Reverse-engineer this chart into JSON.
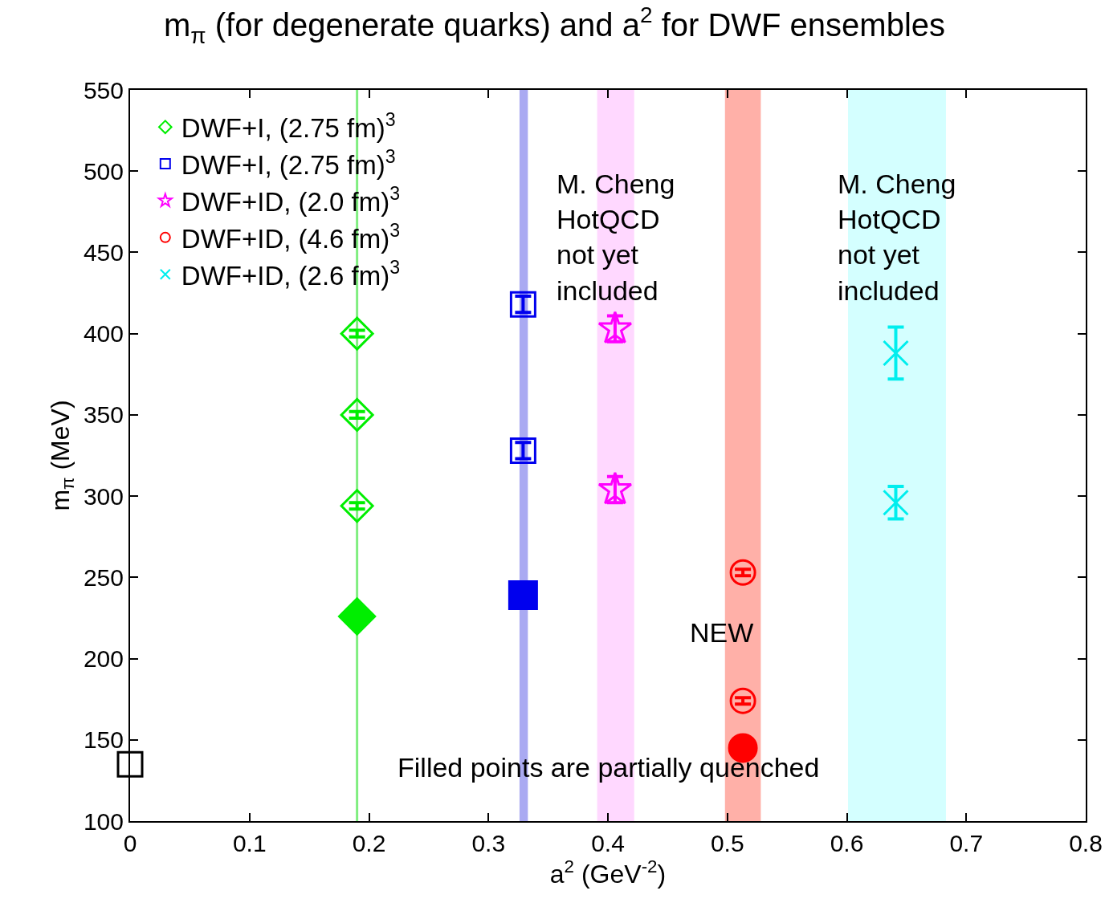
{
  "chart_data": {
    "type": "scatter",
    "title": "m$_{π}$ (for degenerate quarks) and a$^{2}$ for DWF ensembles",
    "xlabel": "a$^{2}$ (GeV$^{-2}$)",
    "ylabel": "m$_{π}$ (MeV)",
    "xlim": [
      0,
      0.8
    ],
    "xticks": [
      0,
      0.1,
      0.2,
      0.3,
      0.4,
      0.5,
      0.6,
      0.7,
      0.8
    ],
    "ylim": [
      100,
      550
    ],
    "yticks": [
      100,
      150,
      200,
      250,
      300,
      350,
      400,
      450,
      500,
      550
    ],
    "grid": false,
    "legend": "top left",
    "series": [
      {
        "name": "DWF+I, (2.75 fm)$^{3}$",
        "color": "#00ee00",
        "marker": "diamond",
        "x": [
          0.19,
          0.19,
          0.19
        ],
        "values": [
          400,
          350,
          294
        ],
        "errors": [
          2,
          2,
          2
        ]
      },
      {
        "name": "DWF+I, (2.75 fm)$^{3}$",
        "color": "#0000ee",
        "marker": "square",
        "x": [
          0.329,
          0.329
        ],
        "values": [
          418,
          328
        ],
        "errors": [
          5,
          5
        ]
      },
      {
        "name": "DWF+ID, (2.0 fm)$^{3}$",
        "color": "#ff00ff",
        "marker": "star",
        "x": [
          0.406,
          0.406
        ],
        "values": [
          403,
          304
        ],
        "errors": [
          8,
          8
        ]
      },
      {
        "name": "DWF+ID, (4.6 fm)$^{3}$",
        "color": "#ff0000",
        "marker": "circle",
        "x": [
          0.513,
          0.513
        ],
        "values": [
          253,
          174
        ],
        "errors": [
          2,
          2
        ]
      },
      {
        "name": "DWF+ID, (2.6 fm)$^{3}$",
        "color": "#00eeee",
        "marker": "cross",
        "x": [
          0.641,
          0.641
        ],
        "values": [
          388,
          296
        ],
        "errors": [
          16,
          10
        ]
      },
      {
        "color": "#00ee00",
        "marker": "diamond",
        "x": [
          0.19
        ],
        "values": [
          226
        ]
      },
      {
        "color": "#0000ee",
        "marker": "square",
        "x": [
          0.329
        ],
        "values": [
          239
        ]
      },
      {
        "color": "#ff0000",
        "marker": "circle",
        "x": [
          0.513
        ],
        "values": [
          145
        ]
      },
      {
        "color": "#000000",
        "marker": "square",
        "x": [
          0
        ],
        "values": [
          135
        ]
      }
    ],
    "ref_lines": [
      {
        "axis": "x",
        "value": 0.19,
        "color": "#80ee80"
      }
    ],
    "bands": [
      {
        "axis": "x",
        "from": 0.326,
        "to": 0.333,
        "color": "#aaaaf2"
      },
      {
        "axis": "x",
        "from": 0.391,
        "to": 0.422,
        "color": "#ffd8ff",
        "label": "M. Cheng\nHotQCD\nnot yet\nincluded"
      },
      {
        "axis": "x",
        "from": 0.498,
        "to": 0.528,
        "color": "#ffb0a8"
      },
      {
        "axis": "x",
        "from": 0.601,
        "to": 0.683,
        "color": "#d4ffff",
        "label": "M. Cheng\nHotQCD\nnot yet\nincluded"
      }
    ],
    "annotations": [
      {
        "text": "NEW",
        "x": 0.495,
        "y": 216
      },
      "Filled points are partially quenched"
    ]
  }
}
